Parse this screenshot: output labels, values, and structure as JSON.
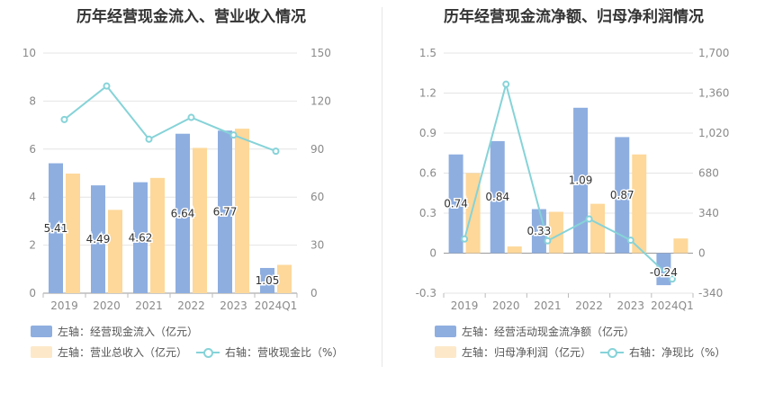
{
  "colors": {
    "blue": "#8eaee0",
    "orange": "#fdd89a",
    "line": "#86d3d8",
    "grid": "#e4e4e4",
    "axis": "#8a8a8a"
  },
  "chart_data": [
    {
      "type": "bar",
      "title": "历年经营现金流入、营业收入情况",
      "categories": [
        "2019",
        "2020",
        "2021",
        "2022",
        "2023",
        "2024Q1"
      ],
      "series": [
        {
          "name": "左轴：经营现金流入（亿元）",
          "axis": "left",
          "kind": "bar",
          "color": "#8eaee0",
          "values": [
            5.41,
            4.49,
            4.62,
            6.64,
            6.77,
            1.05
          ],
          "labels": [
            "5.41",
            "4.49",
            "4.62",
            "6.64",
            "6.77",
            "1.05"
          ]
        },
        {
          "name": "左轴：营业总收入（亿元）",
          "axis": "left",
          "kind": "bar",
          "color": "#fdd89a",
          "values": [
            4.98,
            3.47,
            4.8,
            6.05,
            6.85,
            1.18
          ]
        },
        {
          "name": "右轴：营收现金比（%）",
          "axis": "right",
          "kind": "line",
          "color": "#86d3d8",
          "values": [
            108.5,
            129.4,
            96.2,
            109.8,
            98.8,
            88.7
          ]
        }
      ],
      "yleft": {
        "min": 0,
        "max": 10,
        "ticks": [
          "0",
          "2",
          "4",
          "6",
          "8",
          "10"
        ]
      },
      "yright": {
        "min": 0,
        "max": 150,
        "ticks": [
          "0",
          "30",
          "60",
          "90",
          "120",
          "150"
        ]
      },
      "grid": true,
      "legend": "bottom"
    },
    {
      "type": "bar",
      "title": "历年经营现金流净额、归母净利润情况",
      "categories": [
        "2019",
        "2020",
        "2021",
        "2022",
        "2023",
        "2024Q1"
      ],
      "series": [
        {
          "name": "左轴：经营活动现金流净额（亿元）",
          "axis": "left",
          "kind": "bar",
          "color": "#8eaee0",
          "values": [
            0.74,
            0.84,
            0.33,
            1.09,
            0.87,
            -0.24
          ],
          "labels": [
            "0.74",
            "0.84",
            "0.33",
            "1.09",
            "0.87",
            "-0.24"
          ]
        },
        {
          "name": "左轴：归母净利润（亿元）",
          "axis": "left",
          "kind": "bar",
          "color": "#fdd89a",
          "values": [
            0.6,
            0.05,
            0.31,
            0.37,
            0.74,
            0.11
          ]
        },
        {
          "name": "右轴：净现比（%）",
          "axis": "right",
          "kind": "line",
          "color": "#86d3d8",
          "values": [
            120,
            1435,
            105,
            290,
            110,
            -220
          ]
        }
      ],
      "yleft": {
        "min": -0.3,
        "max": 1.5,
        "ticks": [
          "-0.3",
          "0",
          "0.3",
          "0.6",
          "0.9",
          "1.2",
          "1.5"
        ]
      },
      "yright": {
        "min": -340,
        "max": 1700,
        "ticks": [
          "-340",
          "0",
          "340",
          "680",
          "1,020",
          "1,360",
          "1,700"
        ]
      },
      "grid": true,
      "legend": "bottom"
    }
  ]
}
